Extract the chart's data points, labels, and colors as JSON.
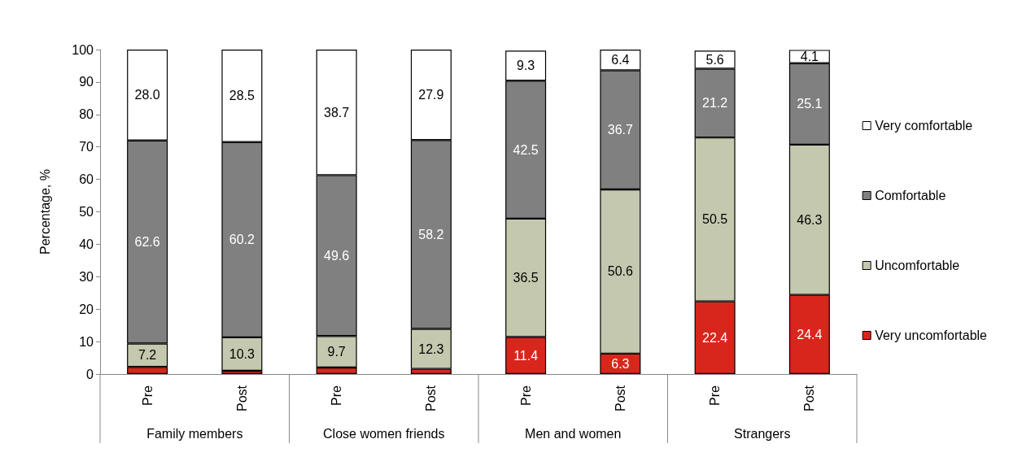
{
  "chart_data": {
    "type": "bar",
    "stacked": true,
    "ylabel": "Percentage, %",
    "categories": [
      "Pre",
      "Post",
      "Pre",
      "Post",
      "Pre",
      "Post",
      "Pre",
      "Post"
    ],
    "annotations": [
      "Family members",
      "Close women friends",
      "Men and women",
      "Strangers"
    ],
    "series": [
      {
        "name": "Very uncomfortable",
        "color": "#d9261c",
        "values": [
          2.2,
          1.0,
          2.0,
          1.6,
          11.4,
          6.3,
          22.4,
          24.4
        ],
        "value_labels": [
          null,
          null,
          null,
          null,
          "11.4",
          "6.3",
          "22.4",
          "24.4"
        ]
      },
      {
        "name": "Uncomfortable",
        "color": "#c4c8ae",
        "values": [
          7.2,
          10.3,
          9.7,
          12.3,
          36.5,
          50.6,
          50.5,
          46.3
        ],
        "value_labels": [
          "7.2",
          "10.3",
          "9.7",
          "12.3",
          "36.5",
          "50.6",
          "50.5",
          "46.3"
        ]
      },
      {
        "name": "Comfortable",
        "color": "#808080",
        "values": [
          62.6,
          60.2,
          49.6,
          58.2,
          42.5,
          36.7,
          21.2,
          25.1
        ],
        "value_labels": [
          "62.6",
          "60.2",
          "49.6",
          "58.2",
          "42.5",
          "36.7",
          "21.2",
          "25.1"
        ]
      },
      {
        "name": "Very comfortable",
        "color": "#ffffff",
        "values": [
          28.0,
          28.5,
          38.7,
          27.9,
          9.3,
          6.4,
          5.6,
          4.1
        ],
        "value_labels": [
          "28.0",
          "28.5",
          "38.7",
          "27.9",
          "9.3",
          "6.4",
          "5.6",
          "4.1"
        ]
      }
    ],
    "ylim": [
      0,
      100
    ],
    "yticks": [
      0,
      10,
      20,
      30,
      40,
      50,
      60,
      70,
      80,
      90,
      100
    ],
    "grid": false,
    "legend": "right"
  }
}
